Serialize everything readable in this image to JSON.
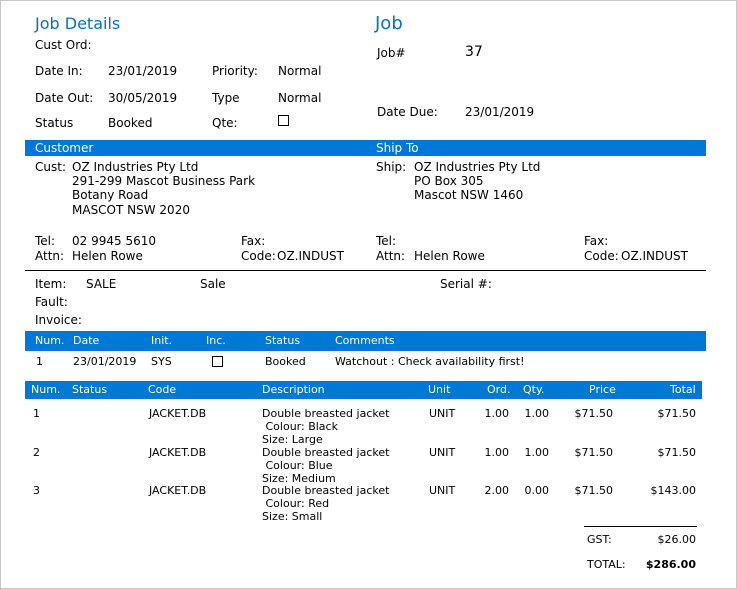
{
  "job_details": {
    "title": "Job Details",
    "cust_ord_label": "Cust Ord:",
    "date_in_label": "Date In:",
    "date_in": "23/01/2019",
    "priority_label": "Priority:",
    "priority": "Normal",
    "date_out_label": "Date Out:",
    "date_out": "30/05/2019",
    "type_label": "Type",
    "type": "Normal",
    "status_label": "Status",
    "status": "Booked",
    "qte_label": "Qte:"
  },
  "job": {
    "title": "Job",
    "job_no_label": "Job#",
    "job_no": "37",
    "date_due_label": "Date Due:",
    "date_due": "23/01/2019"
  },
  "customer": {
    "header": "Customer",
    "cust_label": "Cust:",
    "lines": [
      "OZ Industries Pty Ltd",
      "291-299 Mascot Business Park",
      "Botany Road",
      "MASCOT NSW 2020"
    ],
    "tel_label": "Tel:",
    "tel": "02 9945 5610",
    "attn_label": "Attn:",
    "attn": "Helen Rowe",
    "fax_label": "Fax:",
    "code_label": "Code:",
    "code": "OZ.INDUST"
  },
  "ship_to": {
    "header": "Ship To",
    "ship_label": "Ship:",
    "lines": [
      "OZ Industries Pty Ltd",
      "PO Box 305",
      "Mascot NSW 1460"
    ],
    "tel_label": "Tel:",
    "attn_label": "Attn:",
    "attn": "Helen Rowe",
    "fax_label": "Fax:",
    "code_label": "Code:",
    "code": "OZ.INDUST"
  },
  "item_section": {
    "item_label": "Item:",
    "item": "SALE",
    "sale": "Sale",
    "serial_label": "Serial #:",
    "fault_label": "Fault:",
    "invoice_label": "Invoice:"
  },
  "comments_table": {
    "headers": [
      "Num.",
      "Date",
      "Init.",
      "Inc.",
      "Status",
      "Comments"
    ],
    "rows": [
      {
        "num": "1",
        "date": "23/01/2019",
        "init": "SYS",
        "status": "Booked",
        "comment": "Watchout : Check availability first!"
      }
    ]
  },
  "lines_table": {
    "headers": [
      "Num.",
      "Status",
      "Code",
      "Description",
      "Unit",
      "Ord.",
      "Qty.",
      "Price",
      "Total"
    ],
    "rows": [
      {
        "num": "1",
        "status": "",
        "code": "JACKET.DB",
        "desc": "Double breasted jacket",
        "opt1": " Colour: Black",
        "opt2": "Size: Large",
        "unit": "UNIT",
        "ord": "1.00",
        "qty": "1.00",
        "price": "$71.50",
        "total": "$71.50"
      },
      {
        "num": "2",
        "status": "",
        "code": "JACKET.DB",
        "desc": "Double breasted jacket",
        "opt1": " Colour: Blue",
        "opt2": "Size: Medium",
        "unit": "UNIT",
        "ord": "1.00",
        "qty": "1.00",
        "price": "$71.50",
        "total": "$71.50"
      },
      {
        "num": "3",
        "status": "",
        "code": "JACKET.DB",
        "desc": "Double breasted jacket",
        "opt1": " Colour: Red",
        "opt2": "Size: Small",
        "unit": "UNIT",
        "ord": "2.00",
        "qty": "0.00",
        "price": "$71.50",
        "total": "$143.00"
      }
    ]
  },
  "totals": {
    "gst_label": "GST:",
    "gst": "$26.00",
    "total_label": "TOTAL:",
    "total": "$286.00"
  },
  "colors": {
    "accent": "#0078d7",
    "title": "#0a6ed1"
  }
}
